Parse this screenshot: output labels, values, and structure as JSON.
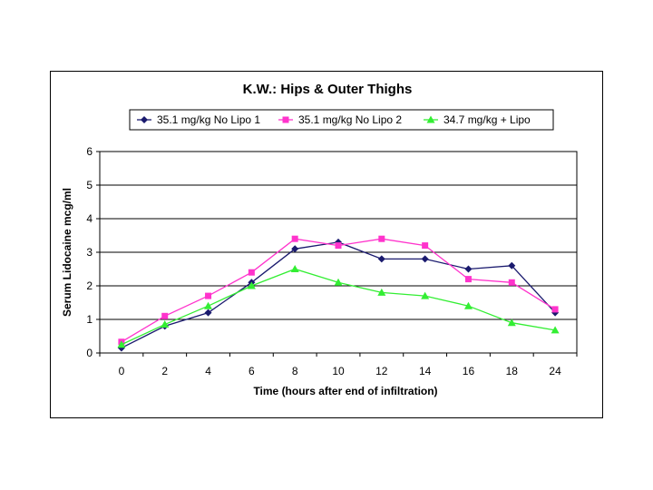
{
  "chart_data": {
    "type": "line",
    "title": "K.W.: Hips & Outer Thighs",
    "xlabel": "Time (hours after end of infiltration)",
    "ylabel": "Serum Lidocaine mcg/ml",
    "categories": [
      "0",
      "2",
      "4",
      "6",
      "8",
      "10",
      "12",
      "14",
      "16",
      "18",
      "24"
    ],
    "ylim": [
      0,
      6
    ],
    "yticks": [
      "0",
      "1",
      "2",
      "3",
      "4",
      "5",
      "6"
    ],
    "grid": true,
    "legend_position": "top",
    "series": [
      {
        "name": "35.1 mg/kg No Lipo 1",
        "color": "#1a1a6e",
        "marker": "diamond",
        "values": [
          0.15,
          0.8,
          1.2,
          2.1,
          3.1,
          3.3,
          2.8,
          2.8,
          2.5,
          2.6,
          1.2
        ]
      },
      {
        "name": "35.1 mg/kg No Lipo 2",
        "color": "#ff33cc",
        "marker": "square",
        "values": [
          0.33,
          1.1,
          1.7,
          2.4,
          3.4,
          3.2,
          3.4,
          3.2,
          2.2,
          2.1,
          1.3
        ]
      },
      {
        "name": "34.7 mg/kg + Lipo",
        "color": "#33ee33",
        "marker": "triangle",
        "values": [
          0.25,
          0.85,
          1.4,
          2.0,
          2.5,
          2.1,
          1.8,
          1.7,
          1.4,
          0.9,
          0.68
        ]
      }
    ]
  }
}
